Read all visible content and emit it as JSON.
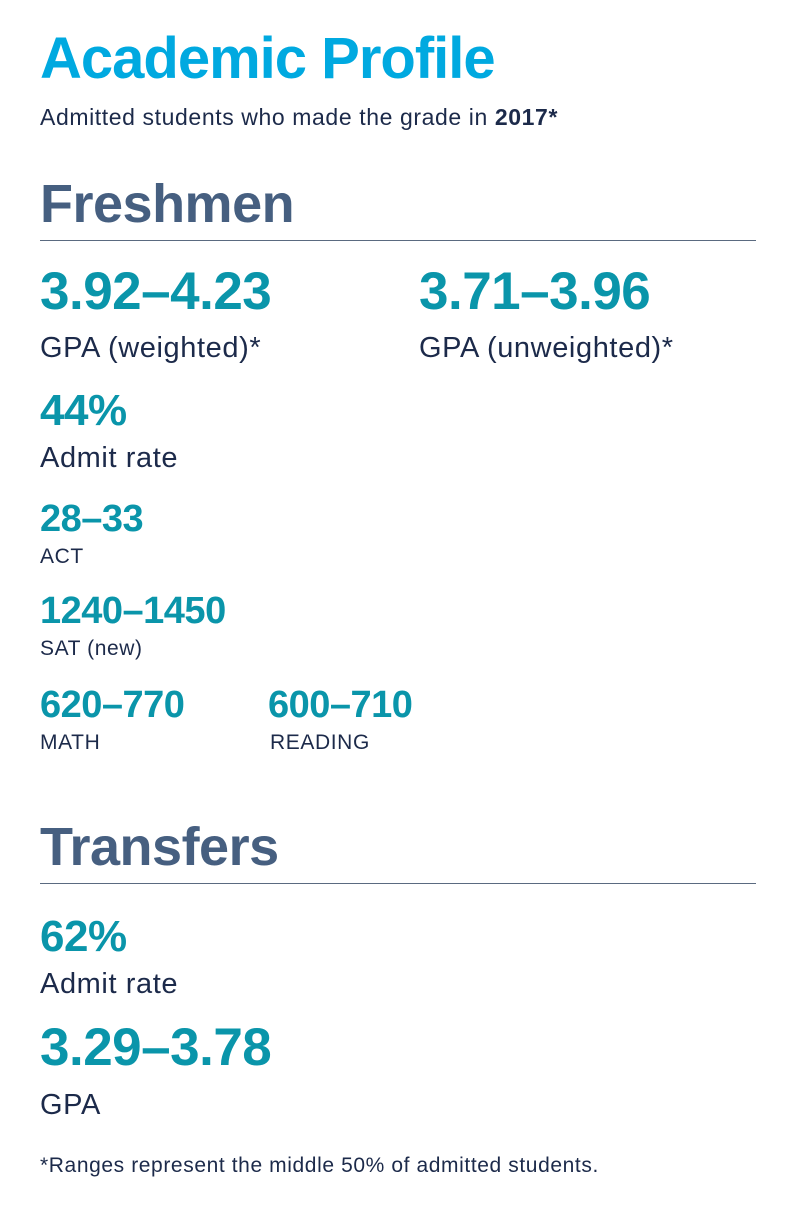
{
  "header": {
    "title": "Academic Profile",
    "subtitle_prefix": "Admitted students who made the grade in ",
    "subtitle_year": "2017*"
  },
  "freshmen": {
    "heading": "Freshmen",
    "gpa_weighted": {
      "value": "3.92–4.23",
      "label": "GPA (weighted)*"
    },
    "gpa_unweighted": {
      "value": "3.71–3.96",
      "label": "GPA (unweighted)*"
    },
    "admit_rate": {
      "value": "44%",
      "label": "Admit rate"
    },
    "act": {
      "value": "28–33",
      "label": "ACT"
    },
    "sat": {
      "value": "1240–1450",
      "label": "SAT (new)"
    },
    "math": {
      "value": "620–770",
      "label": "MATH"
    },
    "reading": {
      "value": "600–710",
      "label": "READING"
    }
  },
  "transfers": {
    "heading": "Transfers",
    "admit_rate": {
      "value": "62%",
      "label": "Admit rate"
    },
    "gpa": {
      "value": "3.29–3.78",
      "label": "GPA"
    }
  },
  "footnote": "*Ranges represent the middle 50% of admitted students."
}
